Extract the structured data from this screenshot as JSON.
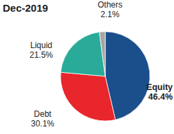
{
  "chart_data": {
    "type": "pie",
    "title": "Dec-2019",
    "categories": [
      "Equity",
      "Debt",
      "Liquid",
      "Others"
    ],
    "values": [
      46.4,
      30.1,
      21.5,
      2.1
    ],
    "value_labels": [
      "46.4%",
      "30.1%",
      "21.5%",
      "2.1%"
    ],
    "colors": [
      "#1b4f8c",
      "#e8262c",
      "#2aab99",
      "#a6a6a6"
    ],
    "data_labels": true
  }
}
